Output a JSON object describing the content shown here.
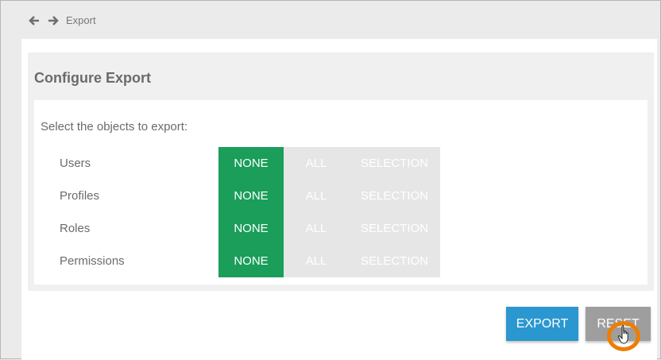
{
  "breadcrumb": {
    "title": "Export",
    "back_icon": "arrow-left-icon",
    "forward_icon": "arrow-right-icon"
  },
  "panel": {
    "title": "Configure Export",
    "prompt": "Select the objects to export:"
  },
  "options": [
    "NONE",
    "ALL",
    "SELECTION"
  ],
  "rows": [
    {
      "label": "Users",
      "selected": "NONE"
    },
    {
      "label": "Profiles",
      "selected": "NONE"
    },
    {
      "label": "Roles",
      "selected": "NONE"
    },
    {
      "label": "Permissions",
      "selected": "NONE"
    }
  ],
  "buttons": {
    "export": "EXPORT",
    "reset": "RESET"
  },
  "colors": {
    "selected": "#1a9e5a",
    "unselected": "#e6e6e6",
    "export": "#2b97d0",
    "reset": "#9e9e9e",
    "cursor_highlight": "#f07d00"
  }
}
